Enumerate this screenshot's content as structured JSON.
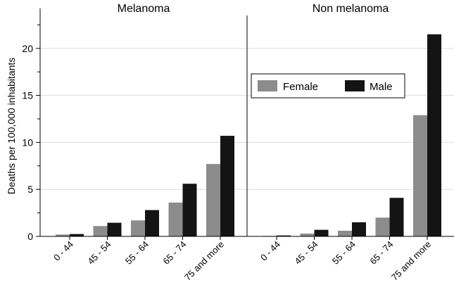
{
  "chart_data": {
    "type": "bar",
    "ylabel": "Deaths per 100,000 inhabitants",
    "ylim": [
      0,
      23.5
    ],
    "yticks": [
      0,
      5,
      10,
      15,
      20
    ],
    "grid": true,
    "legend_position": "right",
    "categories": [
      "0 - 44",
      "45 - 54",
      "55 - 64",
      "65 - 74",
      "75 and more"
    ],
    "series_style": [
      {
        "name": "Female",
        "color": "#8c8c8c"
      },
      {
        "name": "Male",
        "color": "#141414"
      }
    ],
    "panels": [
      {
        "title": "Melanoma",
        "series": [
          {
            "name": "Female",
            "values": [
              0.2,
              1.1,
              1.7,
              3.6,
              7.7
            ]
          },
          {
            "name": "Male",
            "values": [
              0.25,
              1.45,
              2.8,
              5.6,
              10.7
            ]
          }
        ]
      },
      {
        "title": "Non melanoma",
        "series": [
          {
            "name": "Female",
            "values": [
              0.05,
              0.3,
              0.6,
              2.0,
              12.9
            ]
          },
          {
            "name": "Male",
            "values": [
              0.1,
              0.7,
              1.5,
              4.1,
              21.5
            ]
          }
        ]
      }
    ]
  }
}
